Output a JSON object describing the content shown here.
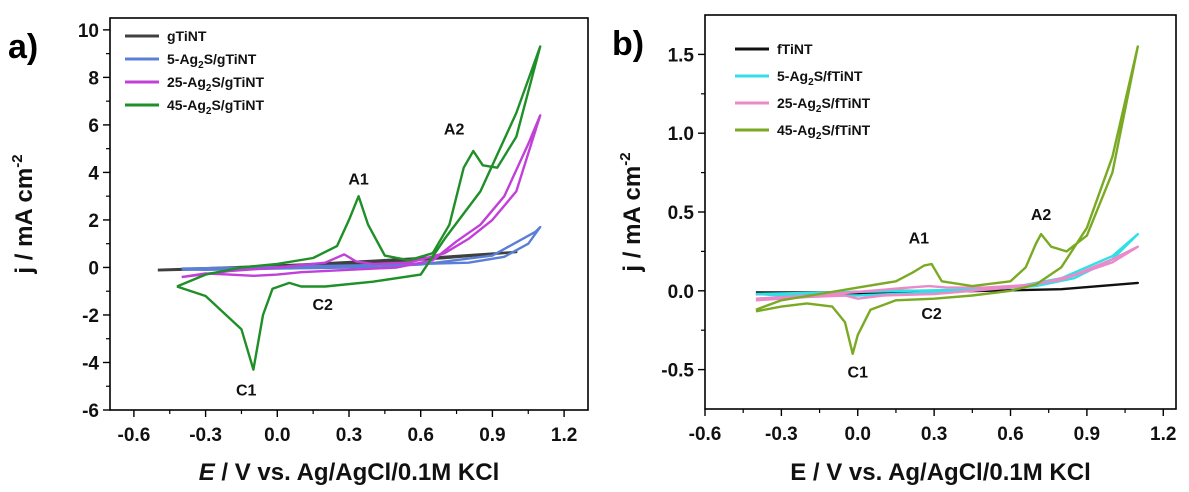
{
  "chart_data": [
    {
      "type": "line",
      "panel_label": "a)",
      "xlabel_italic": "E",
      "xlabel_rest": " / V vs. Ag/AgCl/0.1M KCl",
      "ylabel": "j / mA cm",
      "ylabel_sup": "-2",
      "xlim": [
        -0.7,
        1.3
      ],
      "ylim": [
        -6,
        10.5
      ],
      "xticks": [
        -0.6,
        -0.3,
        0.0,
        0.3,
        0.6,
        0.9,
        1.2
      ],
      "yticks": [
        -6,
        -4,
        -2,
        0,
        2,
        4,
        6,
        8,
        10
      ],
      "legend_position": "top-left",
      "series": [
        {
          "name": "gTiNT",
          "legend_main": "gTiNT",
          "legend_sub": "",
          "legend_tail": "",
          "color": "#404040",
          "x": [
            -0.5,
            -0.2,
            0.1,
            0.4,
            0.7,
            1.0,
            0.7,
            0.4,
            0.1,
            -0.2,
            -0.5
          ],
          "y": [
            -0.1,
            0.0,
            0.12,
            0.28,
            0.45,
            0.65,
            0.4,
            0.2,
            0.05,
            -0.05,
            -0.12
          ]
        },
        {
          "name": "5-Ag2S/gTiNT",
          "legend_main": "5-Ag",
          "legend_sub": "2",
          "legend_tail": "S/gTiNT",
          "color": "#5b7fd6",
          "x": [
            -0.4,
            -0.1,
            0.2,
            0.5,
            0.8,
            0.95,
            1.05,
            1.1,
            1.08,
            0.9,
            0.6,
            0.3,
            0.0,
            -0.3,
            -0.4
          ],
          "y": [
            -0.05,
            0.0,
            0.06,
            0.12,
            0.2,
            0.45,
            1.0,
            1.7,
            1.5,
            0.5,
            0.12,
            0.0,
            -0.05,
            -0.1,
            -0.08
          ]
        },
        {
          "name": "25-Ag2S/gTiNT",
          "legend_main": "25-Ag",
          "legend_sub": "2",
          "legend_tail": "S/gTiNT",
          "color": "#c040d8",
          "x": [
            -0.4,
            -0.2,
            0.0,
            0.2,
            0.28,
            0.33,
            0.4,
            0.55,
            0.7,
            0.8,
            0.9,
            1.0,
            1.1,
            1.05,
            0.95,
            0.85,
            0.75,
            0.65,
            0.5,
            0.3,
            0.1,
            0.0,
            -0.1,
            -0.2,
            -0.3,
            -0.4
          ],
          "y": [
            -0.4,
            -0.15,
            0.0,
            0.2,
            0.55,
            0.25,
            0.15,
            0.2,
            0.6,
            1.2,
            2.0,
            3.2,
            6.4,
            5.2,
            3.0,
            1.8,
            1.1,
            0.3,
            0.0,
            -0.1,
            -0.2,
            -0.3,
            -0.35,
            -0.3,
            -0.25,
            -0.4
          ]
        },
        {
          "name": "45-Ag2S/gTiNT",
          "legend_main": "45-Ag",
          "legend_sub": "2",
          "legend_tail": "S/gTiNT",
          "color": "#1f8f28",
          "x": [
            -0.42,
            -0.3,
            -0.15,
            0.0,
            0.15,
            0.25,
            0.3,
            0.34,
            0.38,
            0.45,
            0.55,
            0.65,
            0.72,
            0.78,
            0.82,
            0.86,
            0.92,
            1.0,
            1.1,
            1.0,
            0.85,
            0.7,
            0.6,
            0.4,
            0.2,
            0.1,
            0.05,
            -0.02,
            -0.06,
            -0.1,
            -0.15,
            -0.3,
            -0.42
          ],
          "y": [
            -0.8,
            -0.3,
            0.0,
            0.15,
            0.4,
            0.9,
            2.0,
            3.0,
            1.8,
            0.5,
            0.3,
            0.6,
            1.8,
            4.2,
            4.9,
            4.3,
            4.2,
            5.5,
            9.3,
            6.5,
            3.2,
            1.2,
            -0.3,
            -0.6,
            -0.8,
            -0.8,
            -0.65,
            -0.9,
            -2.0,
            -4.3,
            -2.6,
            -1.2,
            -0.8
          ]
        }
      ],
      "annotations": [
        {
          "text": "A1",
          "x": 0.34,
          "y": 3.5
        },
        {
          "text": "A2",
          "x": 0.74,
          "y": 5.6
        },
        {
          "text": "C1",
          "x": -0.13,
          "y": -5.4
        },
        {
          "text": "C2",
          "x": 0.19,
          "y": -1.8
        }
      ]
    },
    {
      "type": "line",
      "panel_label": "b)",
      "xlabel_italic": "",
      "xlabel_rest": "E / V vs. Ag/AgCl/0.1M KCl",
      "ylabel": "j / mA cm",
      "ylabel_sup": "-2",
      "xlim": [
        -0.6,
        1.25
      ],
      "ylim": [
        -0.75,
        1.75
      ],
      "xticks": [
        -0.6,
        -0.3,
        0.0,
        0.3,
        0.6,
        0.9,
        1.2
      ],
      "yticks": [
        -0.5,
        0.0,
        0.5,
        1.0,
        1.5
      ],
      "legend_position": "top-left",
      "series": [
        {
          "name": "fTiNT",
          "legend_main": "fTiNT",
          "legend_sub": "",
          "legend_tail": "",
          "color": "#111111",
          "x": [
            -0.4,
            -0.1,
            0.2,
            0.5,
            0.8,
            1.1,
            0.8,
            0.5,
            0.2,
            -0.1,
            -0.4
          ],
          "y": [
            -0.01,
            -0.01,
            0.0,
            0.0,
            0.01,
            0.05,
            0.01,
            0.0,
            -0.01,
            -0.02,
            -0.02
          ]
        },
        {
          "name": "5-Ag2S/fTiNT",
          "legend_main": "5-Ag",
          "legend_sub": "2",
          "legend_tail": "S/fTiNT",
          "color": "#30e0e6",
          "x": [
            -0.4,
            -0.1,
            0.2,
            0.5,
            0.7,
            0.85,
            1.0,
            1.1,
            1.0,
            0.8,
            0.6,
            0.3,
            0.0,
            -0.3,
            -0.4
          ],
          "y": [
            -0.02,
            -0.01,
            0.0,
            0.01,
            0.03,
            0.08,
            0.2,
            0.36,
            0.22,
            0.08,
            0.02,
            -0.01,
            -0.03,
            -0.03,
            -0.02
          ]
        },
        {
          "name": "25-Ag2S/fTiNT",
          "legend_main": "25-Ag",
          "legend_sub": "2",
          "legend_tail": "S/fTiNT",
          "color": "#ea8ac9",
          "x": [
            -0.4,
            -0.1,
            0.2,
            0.28,
            0.35,
            0.5,
            0.7,
            0.85,
            1.0,
            1.1,
            1.0,
            0.8,
            0.6,
            0.3,
            0.1,
            0.0,
            -0.05,
            -0.2,
            -0.4
          ],
          "y": [
            -0.05,
            -0.02,
            0.02,
            0.03,
            0.02,
            0.02,
            0.04,
            0.1,
            0.2,
            0.28,
            0.18,
            0.07,
            0.02,
            -0.02,
            -0.03,
            -0.05,
            -0.03,
            -0.04,
            -0.06
          ]
        },
        {
          "name": "45-Ag2S/fTiNT",
          "legend_main": "45-Ag",
          "legend_sub": "2",
          "legend_tail": "S/fTiNT",
          "color": "#7aaa24",
          "x": [
            -0.4,
            -0.3,
            -0.15,
            0.0,
            0.15,
            0.22,
            0.26,
            0.29,
            0.33,
            0.45,
            0.6,
            0.66,
            0.7,
            0.72,
            0.76,
            0.82,
            0.9,
            1.0,
            1.1,
            1.0,
            0.9,
            0.8,
            0.7,
            0.6,
            0.45,
            0.3,
            0.15,
            0.05,
            0.0,
            -0.02,
            -0.05,
            -0.1,
            -0.2,
            -0.3,
            -0.4
          ],
          "y": [
            -0.12,
            -0.06,
            -0.02,
            0.02,
            0.06,
            0.12,
            0.16,
            0.17,
            0.06,
            0.03,
            0.06,
            0.15,
            0.3,
            0.36,
            0.28,
            0.25,
            0.35,
            0.75,
            1.55,
            0.85,
            0.4,
            0.15,
            0.04,
            0.0,
            -0.03,
            -0.05,
            -0.06,
            -0.12,
            -0.28,
            -0.4,
            -0.2,
            -0.1,
            -0.08,
            -0.1,
            -0.13
          ]
        }
      ],
      "annotations": [
        {
          "text": "A1",
          "x": 0.24,
          "y": 0.3
        },
        {
          "text": "A2",
          "x": 0.72,
          "y": 0.45
        },
        {
          "text": "C1",
          "x": 0.0,
          "y": -0.55
        },
        {
          "text": "C2",
          "x": 0.29,
          "y": -0.18
        }
      ]
    }
  ]
}
